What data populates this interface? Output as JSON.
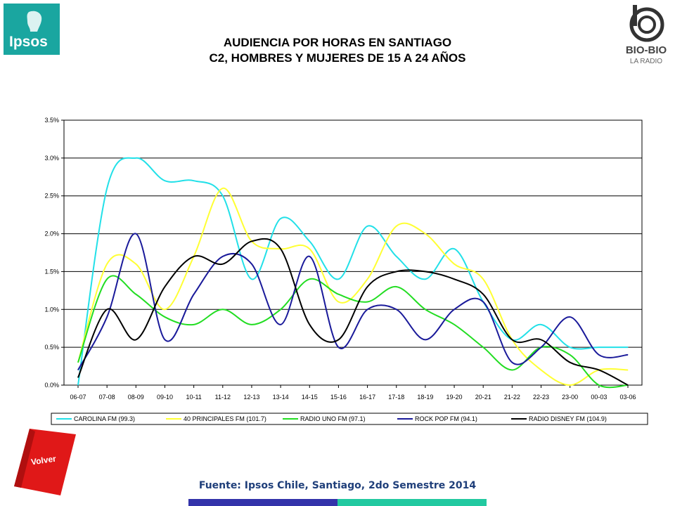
{
  "header": {
    "title_line1": "AUDIENCIA POR HORAS EN SANTIAGO",
    "title_line2": "C2, HOMBRES Y MUJERES DE 15 A 24 AÑOS"
  },
  "logos": {
    "ipsos": "Ipsos",
    "biobio_name": "BIO-BIO",
    "biobio_sub": "LA RADIO"
  },
  "volver_label": "Volver",
  "footer": {
    "source": "Fuente: Ipsos Chile, Santiago, 2do Semestre 2014"
  },
  "colors": {
    "ipsos_teal": "#1aa6a0",
    "volver_red": "#e01818",
    "footer_blue": "#3333aa",
    "footer_teal": "#22c9a0"
  },
  "chart_data": {
    "type": "line",
    "title": "",
    "xlabel": "",
    "ylabel": "",
    "ylim": [
      0,
      3.5
    ],
    "y_ticks": [
      "0.0%",
      "0.5%",
      "1.0%",
      "1.5%",
      "2.0%",
      "2.5%",
      "3.0%",
      "3.5%"
    ],
    "grid": true,
    "legend_position": "bottom",
    "categories": [
      "06-07",
      "07-08",
      "08-09",
      "09-10",
      "10-11",
      "11-12",
      "12-13",
      "13-14",
      "14-15",
      "15-16",
      "16-17",
      "17-18",
      "18-19",
      "19-20",
      "20-21",
      "21-22",
      "22-23",
      "23-00",
      "00-03",
      "03-06"
    ],
    "series": [
      {
        "name": "CAROLINA FM (99.3)",
        "color": "#22e0e8",
        "values": [
          0.0,
          2.6,
          3.0,
          2.7,
          2.7,
          2.5,
          1.4,
          2.2,
          1.9,
          1.4,
          2.1,
          1.7,
          1.4,
          1.8,
          1.1,
          0.6,
          0.8,
          0.5,
          0.5,
          0.5
        ]
      },
      {
        "name": "40 PRINCIPALES FM (101.7)",
        "color": "#ffff33",
        "values": [
          0.3,
          1.6,
          1.6,
          1.0,
          1.7,
          2.6,
          1.9,
          1.8,
          1.8,
          1.1,
          1.4,
          2.1,
          2.0,
          1.6,
          1.4,
          0.6,
          0.2,
          0.0,
          0.2,
          0.2
        ]
      },
      {
        "name": "RADIO UNO FM (97.1)",
        "color": "#22dd22",
        "values": [
          0.3,
          1.4,
          1.2,
          0.9,
          0.8,
          1.0,
          0.8,
          1.0,
          1.4,
          1.2,
          1.1,
          1.3,
          1.0,
          0.8,
          0.5,
          0.2,
          0.5,
          0.4,
          0.0,
          0.0
        ]
      },
      {
        "name": "ROCK  POP FM (94.1)",
        "color": "#1a1a9a",
        "values": [
          0.2,
          0.9,
          2.0,
          0.6,
          1.2,
          1.7,
          1.6,
          0.8,
          1.7,
          0.5,
          1.0,
          1.0,
          0.6,
          1.0,
          1.1,
          0.3,
          0.5,
          0.9,
          0.4,
          0.4
        ]
      },
      {
        "name": "RADIO DISNEY FM (104.9)",
        "color": "#000000",
        "values": [
          0.1,
          1.0,
          0.6,
          1.3,
          1.7,
          1.6,
          1.9,
          1.8,
          0.8,
          0.6,
          1.3,
          1.5,
          1.5,
          1.4,
          1.2,
          0.6,
          0.6,
          0.3,
          0.2,
          0.0
        ]
      }
    ]
  }
}
